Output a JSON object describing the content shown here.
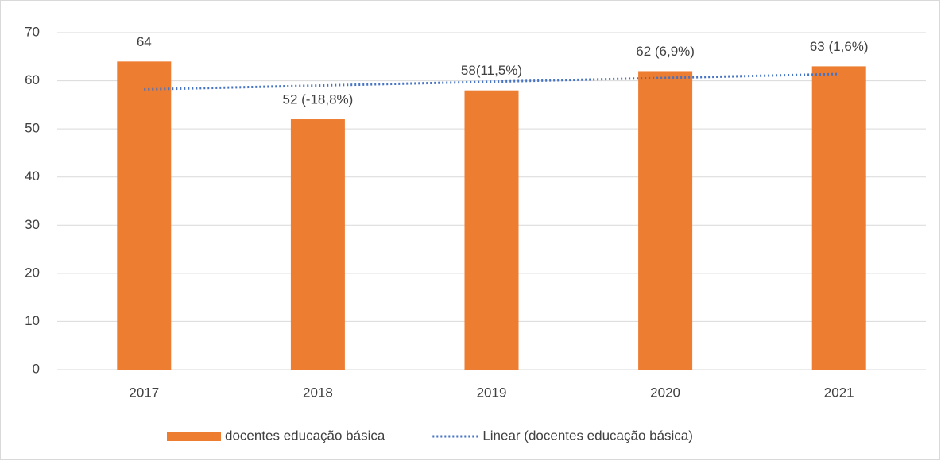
{
  "chart_data": {
    "type": "bar",
    "categories": [
      "2017",
      "2018",
      "2019",
      "2020",
      "2021"
    ],
    "series": [
      {
        "name": "docentes educação básica",
        "color": "#ed7d31",
        "type": "bar",
        "values": [
          64,
          52,
          58,
          62,
          63
        ],
        "value_labels": [
          "64",
          "52 (-18,8%)",
          "58(11,5%)",
          "62 (6,9%)",
          "63 (1,6%)"
        ]
      },
      {
        "name": "Linear (docentes educação básica)",
        "color": "#4472c4",
        "type": "line",
        "dash": "dotted",
        "values": [
          58.2,
          59.0,
          59.8,
          60.6,
          61.4
        ]
      }
    ],
    "ylim": [
      0,
      70
    ],
    "yticks": [
      0,
      10,
      20,
      30,
      40,
      50,
      60,
      70
    ],
    "grid": true,
    "legend": "bottom"
  }
}
